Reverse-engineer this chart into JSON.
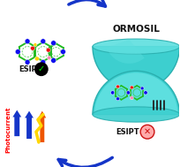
{
  "bg_color": "#ffffff",
  "teal_sphere": "#3DCFCF",
  "teal_inner": "#5DDFDF",
  "teal_shadow": "#2AAFAF",
  "teal_rim": "#20A8A8",
  "arrow_blue": "#1535C8",
  "ormosil_text": "ORMOSIL",
  "esipt_text": "ESIPT",
  "photocurrent_text": "Photocurrent",
  "green_bond": "#22BB22",
  "blue_atom": "#1010EE",
  "red_atom": "#EE1010",
  "yellow_atom": "#FFD000",
  "pink_atom": "#FF88BB",
  "dark_gray": "#111111",
  "cross_red": "#CC1111",
  "arrow_orange": "#EE5500",
  "arrow_yellow": "#FFD700",
  "arrow_blue2": "#1535C8",
  "check_green": "#00BB00",
  "black": "#000000",
  "white": "#ffffff"
}
